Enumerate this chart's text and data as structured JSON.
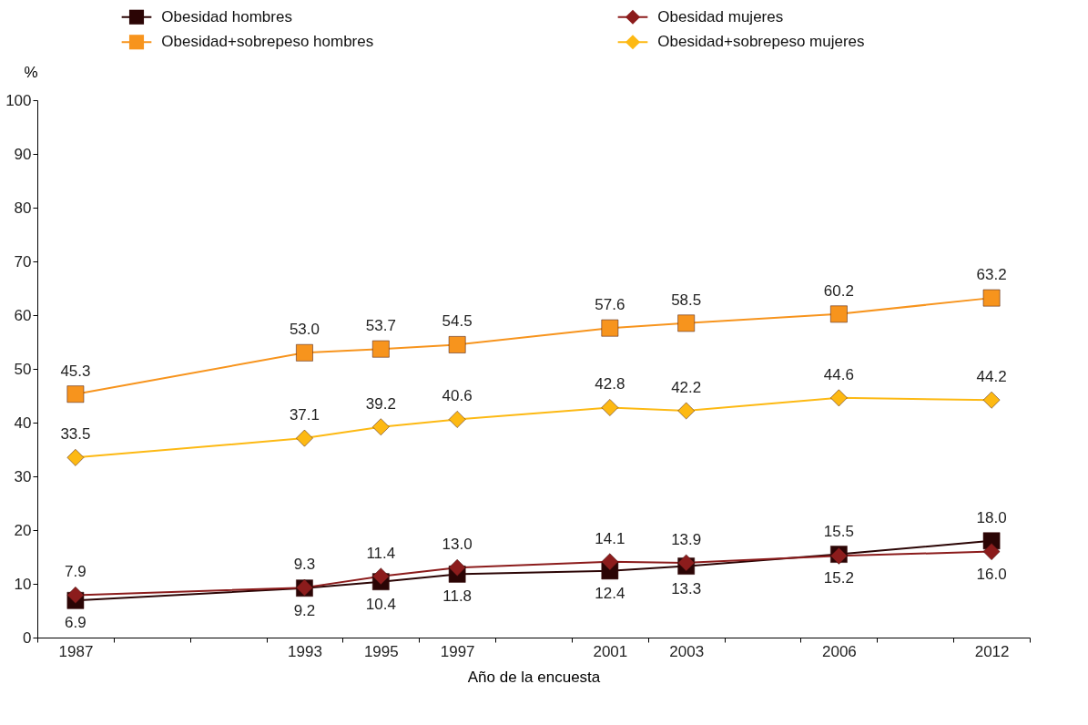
{
  "chart_data": {
    "type": "line",
    "xlabel": "Año de la encuesta",
    "ylabel": "%",
    "categories": [
      "1987",
      null,
      null,
      "1993",
      "1995",
      "1997",
      null,
      "2001",
      "2003",
      null,
      "2006",
      null,
      "2012"
    ],
    "ylim": [
      0,
      100
    ],
    "yticks": [
      0,
      10,
      20,
      30,
      40,
      50,
      60,
      70,
      80,
      90,
      100
    ],
    "grid": false,
    "legend": "top",
    "line_style": "solid",
    "series": [
      {
        "name": "Obesidad hombres",
        "color": "#2b0505",
        "marker": "square",
        "values": [
          6.9,
          null,
          null,
          9.2,
          10.4,
          11.8,
          null,
          12.4,
          13.3,
          null,
          15.5,
          null,
          18.0
        ],
        "value_labels": [
          "6.9",
          null,
          null,
          "9.2",
          "10.4",
          "11.8",
          null,
          "12.4",
          "13.3",
          null,
          "15.5",
          null,
          "18.0"
        ]
      },
      {
        "name": "Obesidad mujeres",
        "color": "#8c1c1c",
        "marker": "diamond",
        "values": [
          7.9,
          null,
          null,
          9.3,
          11.4,
          13.0,
          null,
          14.1,
          13.9,
          null,
          15.2,
          null,
          16.0
        ],
        "value_labels": [
          "7.9",
          null,
          null,
          "9.3",
          "11.4",
          "13.0",
          null,
          "14.1",
          "13.9",
          null,
          "15.2",
          null,
          "16.0"
        ]
      },
      {
        "name": "Obesidad+sobrepeso hombres",
        "color": "#f7941d",
        "marker": "square",
        "values": [
          45.3,
          null,
          null,
          53.0,
          53.7,
          54.5,
          null,
          57.6,
          58.5,
          null,
          60.2,
          null,
          63.2
        ],
        "value_labels": [
          "45.3",
          null,
          null,
          "53.0",
          "53.7",
          "54.5",
          null,
          "57.6",
          "58.5",
          null,
          "60.2",
          null,
          "63.2"
        ]
      },
      {
        "name": "Obesidad+sobrepeso mujeres",
        "color": "#fdb913",
        "marker": "diamond",
        "values": [
          33.5,
          null,
          null,
          37.1,
          39.2,
          40.6,
          null,
          42.8,
          42.2,
          null,
          44.6,
          null,
          44.2
        ],
        "value_labels": [
          "33.5",
          null,
          null,
          "37.1",
          "39.2",
          "40.6",
          null,
          "42.8",
          "42.2",
          null,
          "44.6",
          null,
          "44.2"
        ]
      }
    ]
  }
}
